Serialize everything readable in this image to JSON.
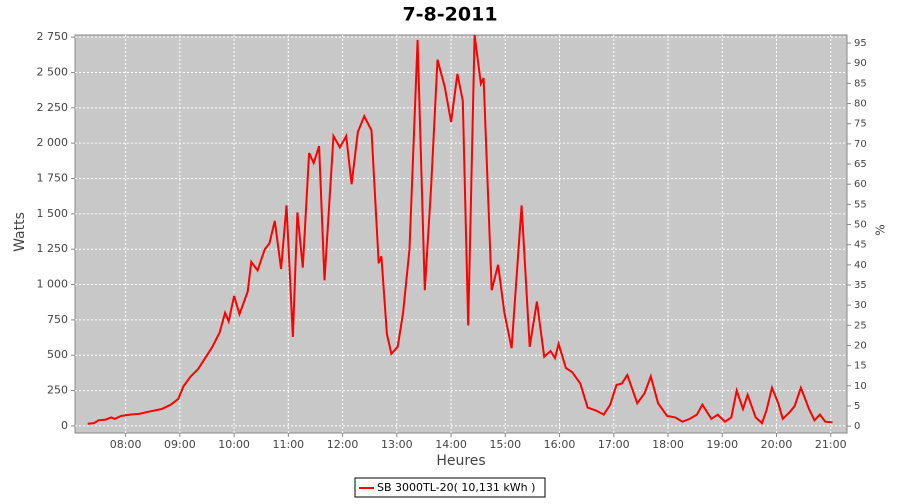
{
  "chart_data": {
    "type": "line",
    "title": "7-8-2011",
    "x_label": "Heures",
    "y_label": "Watts",
    "y2_label": "%",
    "x": [
      "07:18",
      "07:25",
      "07:30",
      "07:38",
      "07:44",
      "07:48",
      "07:55",
      "08:05",
      "08:15",
      "08:25",
      "08:40",
      "08:50",
      "08:58",
      "09:04",
      "09:12",
      "09:20",
      "09:28",
      "09:36",
      "09:44",
      "09:50",
      "09:54",
      "10:00",
      "10:06",
      "10:15",
      "10:19",
      "10:26",
      "10:34",
      "10:39",
      "10:45",
      "10:52",
      "10:58",
      "11:05",
      "11:10",
      "11:16",
      "11:23",
      "11:28",
      "11:34",
      "11:40",
      "11:50",
      "11:57",
      "12:04",
      "12:10",
      "12:17",
      "12:24",
      "12:32",
      "12:40",
      "12:43",
      "12:49",
      "12:54",
      "13:01",
      "13:07",
      "13:14",
      "13:23",
      "13:31",
      "13:38",
      "13:45",
      "13:53",
      "14:00",
      "14:07",
      "14:13",
      "14:19",
      "14:26",
      "14:33",
      "14:36",
      "14:45",
      "14:52",
      "14:59",
      "15:07",
      "15:18",
      "15:27",
      "15:35",
      "15:43",
      "15:50",
      "15:55",
      "15:59",
      "16:07",
      "16:14",
      "16:23",
      "16:31",
      "16:40",
      "16:49",
      "16:56",
      "17:03",
      "17:09",
      "17:15",
      "17:26",
      "17:34",
      "17:41",
      "17:49",
      "17:59",
      "18:08",
      "18:16",
      "18:24",
      "18:32",
      "18:38",
      "18:48",
      "18:55",
      "19:03",
      "19:10",
      "19:16",
      "19:23",
      "19:28",
      "19:37",
      "19:44",
      "19:49",
      "19:55",
      "20:02",
      "20:07",
      "20:15",
      "20:20",
      "20:27",
      "20:36",
      "20:42",
      "20:48",
      "20:54",
      "21:02"
    ],
    "series": [
      {
        "name": "SB 3000TL-20( 10,131 kWh )",
        "color": "#ff0000",
        "values": [
          15,
          20,
          40,
          45,
          60,
          50,
          70,
          80,
          85,
          100,
          120,
          150,
          190,
          280,
          350,
          400,
          480,
          560,
          660,
          800,
          740,
          920,
          790,
          950,
          1160,
          1100,
          1250,
          1290,
          1450,
          1110,
          1560,
          630,
          1510,
          1120,
          1930,
          1860,
          1980,
          1030,
          2050,
          1970,
          2050,
          1710,
          2080,
          2190,
          2090,
          1150,
          1200,
          650,
          510,
          560,
          800,
          1250,
          2730,
          960,
          1700,
          2590,
          2400,
          2150,
          2490,
          2300,
          710,
          2765,
          2420,
          2460,
          960,
          1140,
          800,
          550,
          1560,
          560,
          880,
          490,
          530,
          480,
          580,
          410,
          380,
          300,
          130,
          110,
          80,
          150,
          290,
          300,
          360,
          160,
          230,
          350,
          160,
          70,
          60,
          30,
          50,
          80,
          150,
          50,
          80,
          30,
          60,
          250,
          120,
          220,
          60,
          20,
          110,
          270,
          160,
          50,
          100,
          140,
          270,
          120,
          40,
          80,
          30,
          25
        ]
      }
    ],
    "xlim": [
      "07:04",
      "21:18"
    ],
    "xticks": [
      "08:00",
      "09:00",
      "10:00",
      "11:00",
      "12:00",
      "13:00",
      "14:00",
      "15:00",
      "16:00",
      "17:00",
      "18:00",
      "19:00",
      "20:00",
      "21:00"
    ],
    "ylim": [
      -50,
      2765
    ],
    "yticks": [
      0,
      250,
      500,
      750,
      {
        "value": 1000,
        "label": "1 000"
      },
      {
        "value": 1250,
        "label": "1 250"
      },
      {
        "value": 1500,
        "label": "1 500"
      },
      {
        "value": 1750,
        "label": "1 750"
      },
      {
        "value": 2000,
        "label": "2 000"
      },
      {
        "value": 2250,
        "label": "2 250"
      },
      {
        "value": 2500,
        "label": "2 500"
      },
      {
        "value": 2750,
        "label": "2 750"
      }
    ],
    "y2lim": [
      -1.7,
      97
    ],
    "y2ticks": [
      0,
      5,
      10,
      15,
      20,
      25,
      30,
      35,
      40,
      45,
      50,
      55,
      60,
      65,
      70,
      75,
      80,
      85,
      90,
      95
    ],
    "grid": true
  }
}
